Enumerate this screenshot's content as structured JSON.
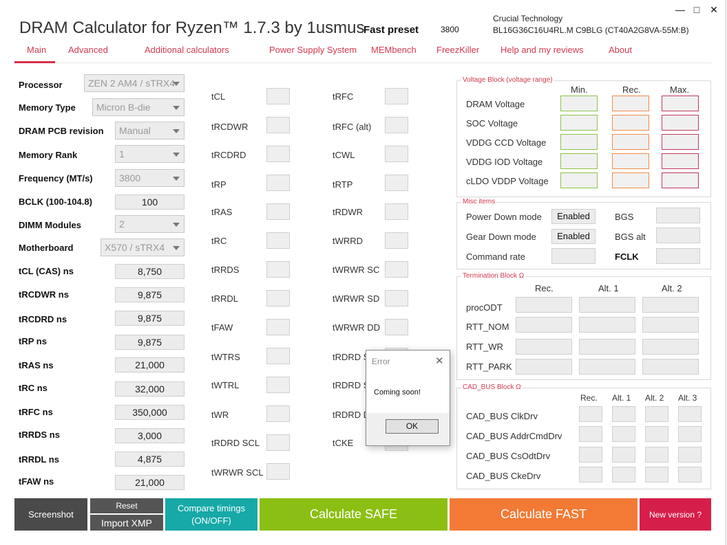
{
  "window": {
    "title": "DRAM Calculator for Ryzen™ 1.7.3 by 1usmus",
    "minimize": "—",
    "maximize": "□",
    "close": "✕"
  },
  "header": {
    "preset_label": "Fast preset",
    "preset_value": "3800",
    "memory_vendor": "Crucial Technology",
    "memory_part": "BL16G36C16U4RL.M C9BLG (CT40A2G8VA-55M:B)"
  },
  "nav": {
    "items": [
      "Main",
      "Advanced",
      "Additional calculators",
      "Power Supply System",
      "MEMbench",
      "FreezKiller",
      "Help and my reviews",
      "About"
    ],
    "active": "Main"
  },
  "left_form": {
    "processor": {
      "label": "Processor",
      "value": "ZEN 2 AM4 / sTRX4"
    },
    "memory_type": {
      "label": "Memory Type",
      "value": "Micron B-die"
    },
    "pcb_revision": {
      "label": "DRAM PCB revision",
      "value": "Manual"
    },
    "memory_rank": {
      "label": "Memory Rank",
      "value": "1"
    },
    "frequency": {
      "label": "Frequency (MT/s)",
      "value": "3800"
    },
    "bclk": {
      "label": "BCLK (100-104.8)",
      "value": "100"
    },
    "dimm_modules": {
      "label": "DIMM Modules",
      "value": "2"
    },
    "motherboard": {
      "label": "Motherboard",
      "value": "X570 / sTRX4"
    },
    "ns_values": [
      {
        "label": "tCL (CAS) ns",
        "value": "8,750"
      },
      {
        "label": "tRCDWR ns",
        "value": "9,875"
      },
      {
        "label": "tRCDRD ns",
        "value": "9,875"
      },
      {
        "label": "tRP ns",
        "value": "9,875"
      },
      {
        "label": "tRAS ns",
        "value": "21,000"
      },
      {
        "label": "tRC ns",
        "value": "32,000"
      },
      {
        "label": "tRFC ns",
        "value": "350,000"
      },
      {
        "label": "tRRDS ns",
        "value": "3,000"
      },
      {
        "label": "tRRDL ns",
        "value": "4,875"
      },
      {
        "label": "tFAW ns",
        "value": "21,000"
      }
    ]
  },
  "timings": {
    "col1": [
      "tCL",
      "tRCDWR",
      "tRCDRD",
      "tRP",
      "tRAS",
      "tRC",
      "tRRDS",
      "tRRDL",
      "tFAW",
      "tWTRS",
      "tWTRL",
      "tWR",
      "tRDRD SCL",
      "tWRWR SCL"
    ],
    "col2": [
      "tRFC",
      "tRFC (alt)",
      "tCWL",
      "tRTP",
      "tRDWR",
      "tWRRD",
      "tWRWR SC",
      "tWRWR SD",
      "tWRWR DD",
      "tRDRD SC",
      "tRDRD SD",
      "tRDRD DD",
      "tCKE"
    ],
    "col2_visible": [
      "tRFC",
      "tRFC (alt)",
      "tCWL",
      "tRTP",
      "tRDWR",
      "tWRRD",
      "tWRWR SC",
      "tWRWR SD",
      "tWRWR DD",
      "tRDRD S",
      "tRDRD S",
      "tRDRD D",
      "tCKE"
    ]
  },
  "voltage_block": {
    "title": "Voltage Block (voltage range)",
    "headers": [
      "Min.",
      "Rec.",
      "Max."
    ],
    "rows": [
      "DRAM Voltage",
      "SOC Voltage",
      "VDDG  CCD Voltage",
      "VDDG  IOD Voltage",
      "cLDO VDDP Voltage"
    ],
    "colors": {
      "min": "#8bc34a",
      "rec": "#f08a4b",
      "max": "#c0395a"
    }
  },
  "misc_items": {
    "title": "Misc items",
    "power_down_label": "Power Down mode",
    "power_down_value": "Enabled",
    "gear_down_label": "Gear Down mode",
    "gear_down_value": "Enabled",
    "command_rate_label": "Command rate",
    "bgs_label": "BGS",
    "bgs_alt_label": "BGS alt",
    "fclk_label": "FCLK"
  },
  "termination_block": {
    "title": "Termination Block Ω",
    "headers": [
      "Rec.",
      "Alt. 1",
      "Alt. 2"
    ],
    "rows": [
      "procODT",
      "RTT_NOM",
      "RTT_WR",
      "RTT_PARK"
    ]
  },
  "cad_bus_block": {
    "title": "CAD_BUS Block Ω",
    "headers": [
      "Rec.",
      "Alt. 1",
      "Alt. 2",
      "Alt. 3"
    ],
    "rows": [
      "CAD_BUS ClkDrv",
      "CAD_BUS AddrCmdDrv",
      "CAD_BUS CsOdtDrv",
      "CAD_BUS CkeDrv"
    ]
  },
  "bottom_bar": {
    "screenshot": "Screenshot",
    "reset": "Reset",
    "import_xmp": "Import XMP",
    "compare_line1": "Compare timings",
    "compare_line2": "(ON/OFF)",
    "calc_safe": "Calculate SAFE",
    "calc_fast": "Calculate FAST",
    "new_version": "New version ?",
    "colors": {
      "screenshot": "#4a4a4a",
      "compare": "#17a8a8",
      "safe": "#8cbf14",
      "fast": "#f27a35",
      "new_version": "#d61e4a"
    }
  },
  "dialog": {
    "title": "Error",
    "close": "✕",
    "message": "Coming soon!",
    "ok": "OK"
  }
}
